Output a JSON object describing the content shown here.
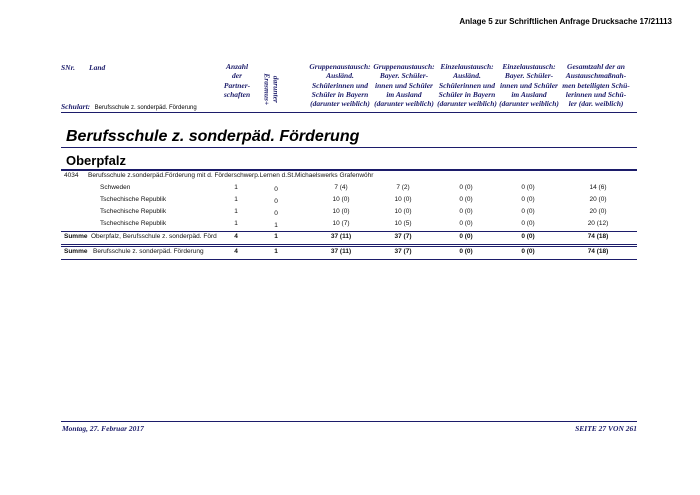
{
  "header": {
    "annex": "Anlage 5 zur Schriftlichen Anfrage Drucksache 17/21113"
  },
  "columns": {
    "snr": "SNr.",
    "land": "Land",
    "partnerships": [
      "Anzahl",
      "der",
      "Partner-",
      "schaften"
    ],
    "erasmus": [
      "darunter",
      "Erasmus+"
    ],
    "group_in": [
      "Gruppenaustausch:",
      "Ausländ.",
      "Schülerinnen und",
      "Schüler in Bayern",
      "(darunter weiblich)"
    ],
    "group_out": [
      "Gruppenaustausch:",
      "Bayer. Schüler-",
      "innen und Schüler",
      "im Ausland",
      "(darunter weiblich)"
    ],
    "single_in": [
      "Einzelaustausch:",
      "Ausländ.",
      "Schülerinnen und",
      "Schüler in Bayern",
      "(darunter weiblich)"
    ],
    "single_out": [
      "Einzelaustausch:",
      "Bayer. Schüler-",
      "innen und Schüler",
      "im Ausland",
      "(darunter weiblich)"
    ],
    "total": [
      "Gesamtzahl der an",
      "Austauschmaßnah-",
      "men beteiligten Schü-",
      "lerinnen und Schü-",
      "ler (dar. weiblich)"
    ]
  },
  "school_type": {
    "label": "Schulart:",
    "value": "Berufsschule z. sonderpäd. Förderung"
  },
  "section_title": "Berufsschule z. sonderpäd. Förderung",
  "region": "Oberpfalz",
  "school": {
    "number": "4034",
    "name": "Berufsschule z.sonderpäd.Förderung mit d. Förderschwerp.Lernen d.St.Michaelswerks Grafenwöhr"
  },
  "rows": [
    [
      "Schweden",
      1,
      0,
      "7 (4)",
      "7 (2)",
      "0 (0)",
      "0 (0)",
      "14 (6)"
    ],
    [
      "Tschechische Republik",
      1,
      0,
      "10 (0)",
      "10 (0)",
      "0 (0)",
      "0 (0)",
      "20 (0)"
    ],
    [
      "Tschechische Republik",
      1,
      0,
      "10 (0)",
      "10 (0)",
      "0 (0)",
      "0 (0)",
      "20 (0)"
    ],
    [
      "Tschechische Republik",
      1,
      1,
      "10 (7)",
      "10 (5)",
      "0 (0)",
      "0 (0)",
      "20 (12)"
    ]
  ],
  "region_sum": {
    "label": "Summe",
    "text": "Oberpfalz, Berufsschule z. sonderpäd. Förd",
    "values": [
      4,
      1,
      "37 (11)",
      "37 (7)",
      "0 (0)",
      "0 (0)",
      "74 (18)"
    ]
  },
  "total_sum": {
    "label": "Summe",
    "text": "Berufsschule z. sonderpäd. Förderung",
    "values": [
      4,
      1,
      "37 (11)",
      "37 (7)",
      "0 (0)",
      "0 (0)",
      "74 (18)"
    ]
  },
  "footer": {
    "date": "Montag, 27. Februar 2017",
    "page": "SEITE 27 VON 261"
  }
}
